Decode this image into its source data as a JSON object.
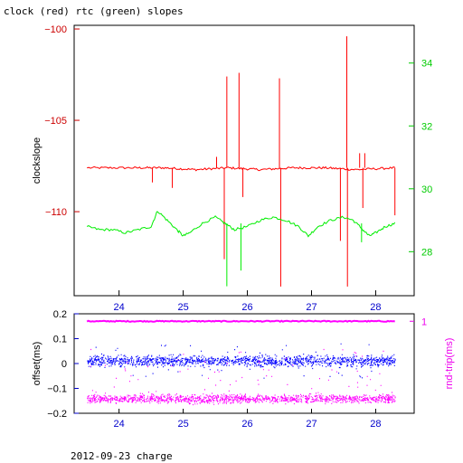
{
  "title": "clock (red) rtc (green) slopes",
  "footer": "2012-09-23 charge",
  "colors": {
    "frame": "#000000",
    "clock": "#ff0000",
    "rtc": "#00ee00",
    "offset": "#0000ff",
    "rtt": "#ff00ff",
    "clock_axis": "#cc0000",
    "rtc_axis": "#00cc00",
    "offset_axis": "#0000cc",
    "rtt_axis": "#ee00ee"
  },
  "chart_data": [
    {
      "type": "line",
      "title": "clock (red) rtc (green) slopes",
      "xlabel": "",
      "xlim": [
        23.3,
        28.6
      ],
      "x_ticks": [
        24,
        25,
        26,
        27,
        28
      ],
      "ylabel": "clockslope",
      "ylim": [
        -114.6,
        -99.8
      ],
      "y_ticks": [
        -100,
        -105,
        -110
      ],
      "y2lim": [
        26.6,
        35.2
      ],
      "y2_ticks": [
        28,
        30,
        32,
        34
      ],
      "series": [
        {
          "axis": "left",
          "baseline": [
            [
              23.5,
              -107.6
            ],
            [
              24.2,
              -107.6
            ],
            [
              24.7,
              -107.6
            ],
            [
              25.2,
              -107.7
            ],
            [
              25.7,
              -107.6
            ],
            [
              26.2,
              -107.7
            ],
            [
              26.7,
              -107.6
            ],
            [
              27.2,
              -107.6
            ],
            [
              27.7,
              -107.7
            ],
            [
              28.3,
              -107.6
            ]
          ],
          "spikes": [
            [
              24.52,
              -108.4
            ],
            [
              24.83,
              -108.7
            ],
            [
              25.52,
              -107.0
            ],
            [
              25.64,
              -112.6
            ],
            [
              25.68,
              -102.6
            ],
            [
              25.87,
              -102.4
            ],
            [
              25.93,
              -109.2
            ],
            [
              26.5,
              -102.7
            ],
            [
              26.52,
              -114.1
            ],
            [
              27.45,
              -111.6
            ],
            [
              27.55,
              -100.4
            ],
            [
              27.56,
              -114.1
            ],
            [
              27.75,
              -106.8
            ],
            [
              27.8,
              -109.8
            ],
            [
              27.83,
              -106.8
            ],
            [
              28.3,
              -110.2
            ]
          ]
        },
        {
          "axis": "right",
          "points": [
            [
              23.5,
              28.8
            ],
            [
              23.7,
              28.7
            ],
            [
              23.9,
              28.7
            ],
            [
              24.1,
              28.6
            ],
            [
              24.3,
              28.7
            ],
            [
              24.5,
              28.8
            ],
            [
              24.6,
              29.3
            ],
            [
              24.75,
              29.0
            ],
            [
              24.9,
              28.7
            ],
            [
              25.0,
              28.5
            ],
            [
              25.1,
              28.6
            ],
            [
              25.3,
              28.9
            ],
            [
              25.5,
              29.1
            ],
            [
              25.65,
              28.9
            ],
            [
              25.8,
              28.7
            ],
            [
              26.0,
              28.8
            ],
            [
              26.2,
              29.0
            ],
            [
              26.4,
              29.1
            ],
            [
              26.6,
              29.0
            ],
            [
              26.8,
              28.8
            ],
            [
              26.95,
              28.5
            ],
            [
              27.1,
              28.8
            ],
            [
              27.3,
              29.0
            ],
            [
              27.5,
              29.1
            ],
            [
              27.65,
              29.0
            ],
            [
              27.8,
              28.7
            ],
            [
              27.9,
              28.5
            ],
            [
              28.0,
              28.6
            ],
            [
              28.15,
              28.8
            ],
            [
              28.3,
              28.9
            ]
          ],
          "spikes": [
            [
              25.68,
              26.9
            ],
            [
              25.9,
              27.4
            ],
            [
              27.78,
              28.3
            ]
          ]
        }
      ]
    },
    {
      "type": "scatter",
      "xlim": [
        23.3,
        28.6
      ],
      "x_ticks": [
        24,
        25,
        26,
        27,
        28
      ],
      "ylabel": "offset(ms)",
      "ylim": [
        -0.2,
        0.2
      ],
      "y_ticks": [
        0.2,
        0.1,
        0,
        -0.1,
        -0.2
      ],
      "y2label": "rnd-trip(ms)",
      "y2_ticks": [
        1
      ],
      "series": [
        {
          "axis": "right",
          "x": [
            23.5,
            28.3
          ],
          "level": 0.17
        },
        {
          "axis": "left",
          "x": [
            23.5,
            28.3
          ],
          "center": 0.01,
          "spread": 0.015
        },
        {
          "axis": "left",
          "x": [
            23.5,
            28.3
          ],
          "center": -0.142,
          "spread": 0.012
        }
      ]
    }
  ]
}
